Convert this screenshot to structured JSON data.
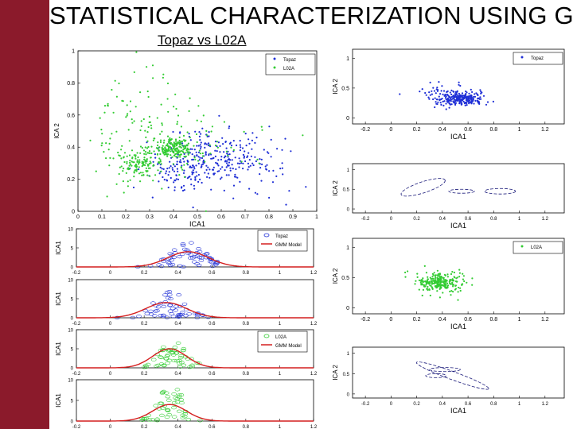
{
  "slide": {
    "title": "STATISTICAL CHARACTERIZATION USING GMM",
    "subtitle": "Topaz vs L02A",
    "colors": {
      "sidebar": "#8b1a2b",
      "topaz": "#1f2fd6",
      "l02a": "#33cc33",
      "model": "#d41f1f"
    }
  },
  "chart_data": [
    {
      "id": "main-scatter",
      "type": "scatter",
      "xlabel": "ICA1",
      "ylabel": "ICA 2",
      "xlim": [
        0,
        1
      ],
      "ylim": [
        0,
        1
      ],
      "xticks": [
        "0",
        "0.1",
        "0.2",
        "0.3",
        "0.4",
        "0.5",
        "0.6",
        "0.7",
        "0.8",
        "0.9",
        "1"
      ],
      "yticks": [
        "0",
        "0.2",
        "0.4",
        "0.6",
        "0.8",
        "1"
      ],
      "legend": [
        "Topaz",
        "L02A"
      ],
      "series": [
        {
          "name": "Topaz",
          "clusters": [
            {
              "cx": 0.57,
              "cy": 0.35,
              "sx": 0.1,
              "sy": 0.09,
              "n": 200,
              "seed": 11
            },
            {
              "cx": 0.43,
              "cy": 0.24,
              "sx": 0.08,
              "sy": 0.07,
              "n": 90,
              "seed": 12
            },
            {
              "cx": 0.72,
              "cy": 0.28,
              "sx": 0.1,
              "sy": 0.1,
              "n": 60,
              "seed": 13
            }
          ]
        },
        {
          "name": "L02A",
          "clusters": [
            {
              "cx": 0.4,
              "cy": 0.39,
              "sx": 0.04,
              "sy": 0.03,
              "n": 180,
              "seed": 21
            },
            {
              "cx": 0.25,
              "cy": 0.3,
              "sx": 0.04,
              "sy": 0.04,
              "n": 110,
              "seed": 22
            },
            {
              "cx": 0.25,
              "cy": 0.5,
              "sx": 0.12,
              "sy": 0.16,
              "n": 120,
              "seed": 23
            },
            {
              "cx": 0.45,
              "cy": 0.35,
              "sx": 0.16,
              "sy": 0.15,
              "n": 60,
              "seed": 24
            }
          ]
        }
      ]
    },
    {
      "id": "topaz-scatter",
      "type": "scatter",
      "xlabel": "ICA1",
      "ylabel": "ICA 2",
      "xlim": [
        -0.3,
        1.35
      ],
      "ylim": [
        -0.1,
        1.15
      ],
      "xticks": [
        "-0.2",
        "0",
        "0.2",
        "0.4",
        "0.6",
        "0.8",
        "1",
        "1.2"
      ],
      "yticks": [
        "0",
        "0.5",
        "1"
      ],
      "legend": [
        "Topaz"
      ],
      "series": [
        {
          "name": "Topaz",
          "clusters": [
            {
              "cx": 0.55,
              "cy": 0.32,
              "sx": 0.09,
              "sy": 0.06,
              "n": 230,
              "seed": 31
            },
            {
              "cx": 0.4,
              "cy": 0.4,
              "sx": 0.12,
              "sy": 0.1,
              "n": 60,
              "seed": 32
            }
          ]
        }
      ]
    },
    {
      "id": "topaz-gmm",
      "type": "contour",
      "xlim": [
        -0.3,
        1.35
      ],
      "ylim": [
        -0.1,
        1.15
      ],
      "xticks": [
        "-0.2",
        "0",
        "0.2",
        "0.4",
        "0.6",
        "0.8",
        "1",
        "1.2"
      ],
      "yticks": [
        "0",
        "0.5",
        "1"
      ],
      "xlabel": "ICA1",
      "ylabel": "ICA 2",
      "ellipses": [
        {
          "cx": 0.25,
          "cy": 0.55,
          "rx": 0.18,
          "ry": 0.14,
          "rot": -18
        },
        {
          "cx": 0.55,
          "cy": 0.45,
          "rx": 0.1,
          "ry": 0.05,
          "rot": 0
        },
        {
          "cx": 0.85,
          "cy": 0.45,
          "rx": 0.12,
          "ry": 0.07,
          "rot": 0
        }
      ]
    },
    {
      "id": "l02a-scatter",
      "type": "scatter",
      "xlabel": "ICA1",
      "ylabel": "ICA 2",
      "xlim": [
        -0.3,
        1.35
      ],
      "ylim": [
        -0.1,
        1.15
      ],
      "xticks": [
        "-0.2",
        "0",
        "0.2",
        "0.4",
        "0.6",
        "0.8",
        "1",
        "1.2"
      ],
      "yticks": [
        "0",
        "0.5",
        "1"
      ],
      "legend": [
        "L02A"
      ],
      "series": [
        {
          "name": "L02A",
          "clusters": [
            {
              "cx": 0.38,
              "cy": 0.42,
              "sx": 0.08,
              "sy": 0.06,
              "n": 200,
              "seed": 41
            },
            {
              "cx": 0.35,
              "cy": 0.45,
              "sx": 0.15,
              "sy": 0.12,
              "n": 70,
              "seed": 42
            }
          ]
        }
      ]
    },
    {
      "id": "l02a-gmm",
      "type": "contour",
      "xlim": [
        -0.3,
        1.35
      ],
      "ylim": [
        -0.1,
        1.15
      ],
      "xticks": [
        "-0.2",
        "0",
        "0.2",
        "0.4",
        "0.6",
        "0.8",
        "1",
        "1.2"
      ],
      "yticks": [
        "0",
        "0.5",
        "1"
      ],
      "xlabel": "ICA1",
      "ylabel": "ICA 2",
      "ellipses": [
        {
          "cx": 0.48,
          "cy": 0.45,
          "rx": 0.3,
          "ry": 0.1,
          "rot": 20
        },
        {
          "cx": 0.42,
          "cy": 0.6,
          "rx": 0.12,
          "ry": 0.05,
          "rot": 0
        },
        {
          "cx": 0.35,
          "cy": 0.45,
          "rx": 0.08,
          "ry": 0.05,
          "rot": 0
        }
      ]
    },
    {
      "id": "hist-1",
      "type": "histogram-fit",
      "xlim": [
        -0.2,
        1.2
      ],
      "ylim": [
        0,
        10
      ],
      "xticks": [
        "-0.2",
        "0",
        "0.2",
        "0.4",
        "0.6",
        "0.8",
        "1",
        "1.2"
      ],
      "yticks": [
        "0",
        "5",
        "10"
      ],
      "ylabel": "ICA1",
      "legend": [
        "Topaz",
        "GMM Model"
      ],
      "markerColor": "#1f2fd6",
      "fit": {
        "mu": 0.46,
        "sigma": 0.12,
        "peak": 4.0
      },
      "markers": {
        "mu": 0.46,
        "sigma": 0.1,
        "n": 60,
        "maxy": 6.5,
        "seed": 51
      }
    },
    {
      "id": "hist-2",
      "type": "histogram-fit",
      "xlim": [
        -0.2,
        1.2
      ],
      "ylim": [
        0,
        10
      ],
      "xticks": [
        "-0.2",
        "0",
        "0.2",
        "0.4",
        "0.6",
        "0.8",
        "1",
        "1.2"
      ],
      "yticks": [
        "0",
        "5",
        "10"
      ],
      "ylabel": "ICA1",
      "markerColor": "#1f2fd6",
      "fit": {
        "mu": 0.33,
        "sigma": 0.12,
        "peak": 4.0
      },
      "markers": {
        "mu": 0.35,
        "sigma": 0.1,
        "n": 55,
        "maxy": 7.0,
        "seed": 52
      }
    },
    {
      "id": "hist-3",
      "type": "histogram-fit",
      "xlim": [
        -0.2,
        1.2
      ],
      "ylim": [
        0,
        10
      ],
      "xticks": [
        "-0.2",
        "0",
        "0.2",
        "0.4",
        "0.6",
        "0.8",
        "1",
        "1.2"
      ],
      "yticks": [
        "0",
        "5",
        "10"
      ],
      "ylabel": "ICA1",
      "legend": [
        "L02A",
        "GMM Model"
      ],
      "markerColor": "#33cc33",
      "fit": {
        "mu": 0.35,
        "sigma": 0.1,
        "peak": 5.0
      },
      "markers": {
        "mu": 0.37,
        "sigma": 0.08,
        "n": 55,
        "maxy": 8.0,
        "seed": 53
      }
    },
    {
      "id": "hist-4",
      "type": "histogram-fit",
      "xlim": [
        -0.2,
        1.2
      ],
      "ylim": [
        0,
        10
      ],
      "xticks": [
        "-0.2",
        "0",
        "0.2",
        "0.4",
        "0.6",
        "0.8",
        "1",
        "1.2"
      ],
      "yticks": [
        "0",
        "5",
        "10"
      ],
      "ylabel": "ICA1",
      "markerColor": "#33cc33",
      "fit": {
        "mu": 0.35,
        "sigma": 0.1,
        "peak": 4.0
      },
      "markers": {
        "mu": 0.36,
        "sigma": 0.08,
        "n": 50,
        "maxy": 8.5,
        "seed": 54
      }
    }
  ]
}
